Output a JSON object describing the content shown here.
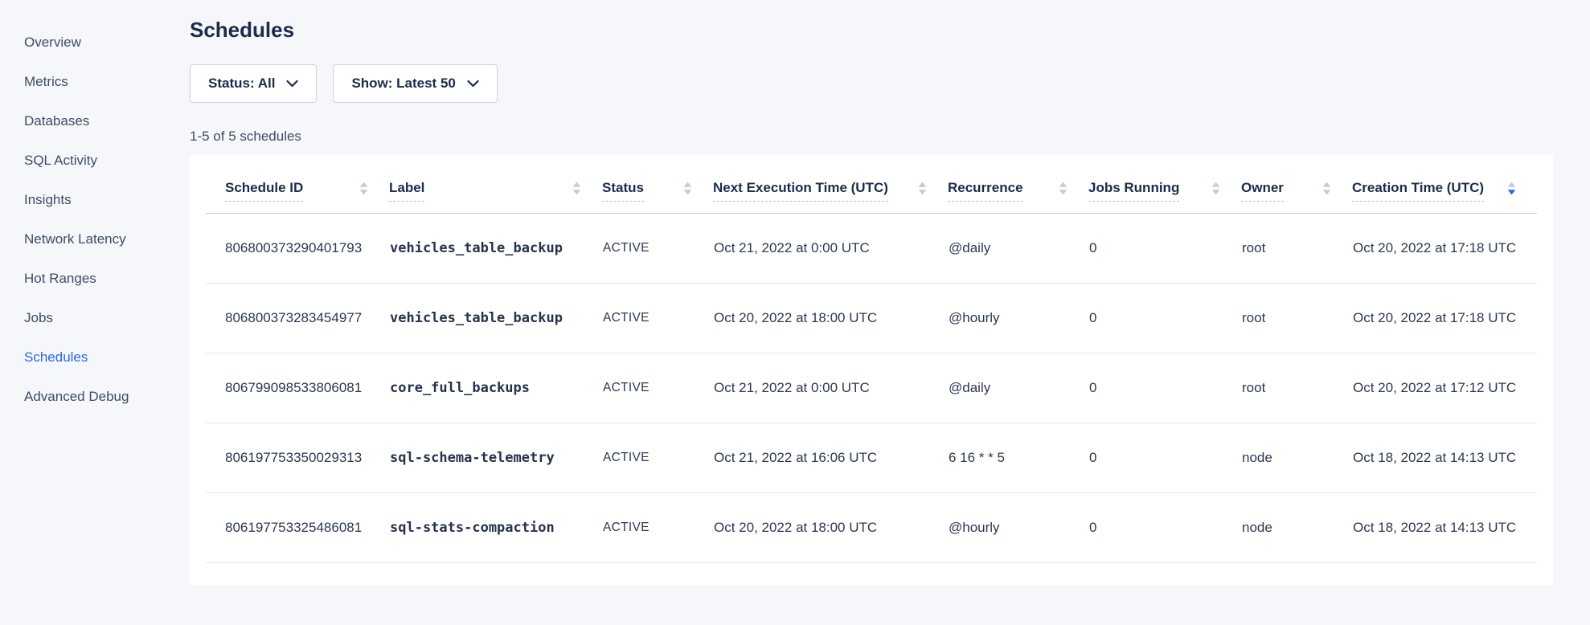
{
  "sidebar": {
    "items": [
      {
        "label": "Overview",
        "active": false
      },
      {
        "label": "Metrics",
        "active": false
      },
      {
        "label": "Databases",
        "active": false
      },
      {
        "label": "SQL Activity",
        "active": false
      },
      {
        "label": "Insights",
        "active": false
      },
      {
        "label": "Network Latency",
        "active": false
      },
      {
        "label": "Hot Ranges",
        "active": false
      },
      {
        "label": "Jobs",
        "active": false
      },
      {
        "label": "Schedules",
        "active": true
      },
      {
        "label": "Advanced Debug",
        "active": false
      }
    ]
  },
  "page": {
    "title": "Schedules",
    "filters": {
      "status": "Status: All",
      "show": "Show: Latest 50"
    },
    "result_count": "1-5 of 5 schedules"
  },
  "table": {
    "columns": [
      {
        "key": "schedule-id",
        "label": "Schedule ID",
        "sort": "none"
      },
      {
        "key": "label",
        "label": "Label",
        "sort": "none"
      },
      {
        "key": "status",
        "label": "Status",
        "sort": "none"
      },
      {
        "key": "next-execution-time",
        "label": "Next Execution Time (UTC)",
        "sort": "none"
      },
      {
        "key": "recurrence",
        "label": "Recurrence",
        "sort": "none"
      },
      {
        "key": "jobs-running",
        "label": "Jobs Running",
        "sort": "none"
      },
      {
        "key": "owner",
        "label": "Owner",
        "sort": "none"
      },
      {
        "key": "creation-time",
        "label": "Creation Time (UTC)",
        "sort": "desc"
      }
    ],
    "rows": [
      [
        "806800373290401793",
        "vehicles_table_backup",
        "ACTIVE",
        "Oct 21, 2022 at 0:00 UTC",
        "@daily",
        "0",
        "root",
        "Oct 20, 2022 at 17:18 UTC"
      ],
      [
        "806800373283454977",
        "vehicles_table_backup",
        "ACTIVE",
        "Oct 20, 2022 at 18:00 UTC",
        "@hourly",
        "0",
        "root",
        "Oct 20, 2022 at 17:18 UTC"
      ],
      [
        "806799098533806081",
        "core_full_backups",
        "ACTIVE",
        "Oct 21, 2022 at 0:00 UTC",
        "@daily",
        "0",
        "root",
        "Oct 20, 2022 at 17:12 UTC"
      ],
      [
        "806197753350029313",
        "sql-schema-telemetry",
        "ACTIVE",
        "Oct 21, 2022 at 16:06 UTC",
        "6 16 * * 5",
        "0",
        "node",
        "Oct 18, 2022 at 14:13 UTC"
      ],
      [
        "806197753325486081",
        "sql-stats-compaction",
        "ACTIVE",
        "Oct 20, 2022 at 18:00 UTC",
        "@hourly",
        "0",
        "node",
        "Oct 18, 2022 at 14:13 UTC"
      ]
    ]
  },
  "colors": {
    "accent_blue": "#2a66e8",
    "page_background": "#f5f7fa",
    "card_background": "#ffffff",
    "heading_text": "#1c2b4a"
  }
}
